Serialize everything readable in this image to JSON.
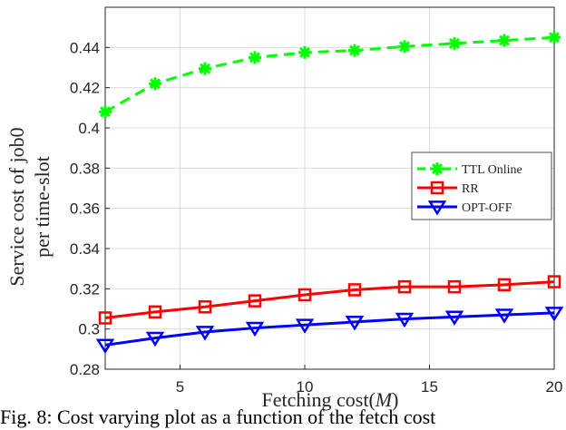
{
  "chart_data": {
    "type": "line",
    "x": [
      2,
      4,
      6,
      8,
      10,
      12,
      14,
      16,
      18,
      20
    ],
    "series": [
      {
        "name": "TTL Online",
        "color": "#00ff00",
        "marker": "asterisk",
        "line_style": "dashed",
        "values": [
          0.408,
          0.422,
          0.4295,
          0.435,
          0.4375,
          0.4385,
          0.4405,
          0.442,
          0.4435,
          0.445
        ]
      },
      {
        "name": "RR",
        "color": "#ff0000",
        "marker": "square",
        "line_style": "solid",
        "values": [
          0.3055,
          0.3085,
          0.311,
          0.314,
          0.317,
          0.3195,
          0.321,
          0.321,
          0.322,
          0.3235
        ]
      },
      {
        "name": "OPT-OFF",
        "color": "#0000ff",
        "marker": "triangle-down",
        "line_style": "solid",
        "values": [
          0.292,
          0.2955,
          0.2985,
          0.3005,
          0.302,
          0.3035,
          0.305,
          0.306,
          0.307,
          0.308
        ]
      }
    ],
    "xlim": [
      2,
      20
    ],
    "ylim": [
      0.28,
      0.46
    ],
    "x_ticks": [
      5,
      10,
      15,
      20
    ],
    "y_ticks": [
      0.28,
      0.3,
      0.32,
      0.34,
      0.36,
      0.38,
      0.4,
      0.42,
      0.44
    ],
    "x_tick_labels": [
      "5",
      "10",
      "15",
      "20"
    ],
    "y_tick_labels": [
      "0.28",
      "0.3",
      "0.32",
      "0.34",
      "0.36",
      "0.38",
      "0.4",
      "0.42",
      "0.44"
    ],
    "xlabel": "Fetching cost(M)",
    "xlabel_text": "Fetching cost(",
    "xlabel_var": "M",
    "xlabel_close": ")",
    "ylabel_line1": "Service cost of job0",
    "ylabel_line2": "per time-slot",
    "grid": true,
    "legend_position": "right-middle"
  },
  "caption": "Fig. 8: Cost varying plot as a function of the fetch cost"
}
